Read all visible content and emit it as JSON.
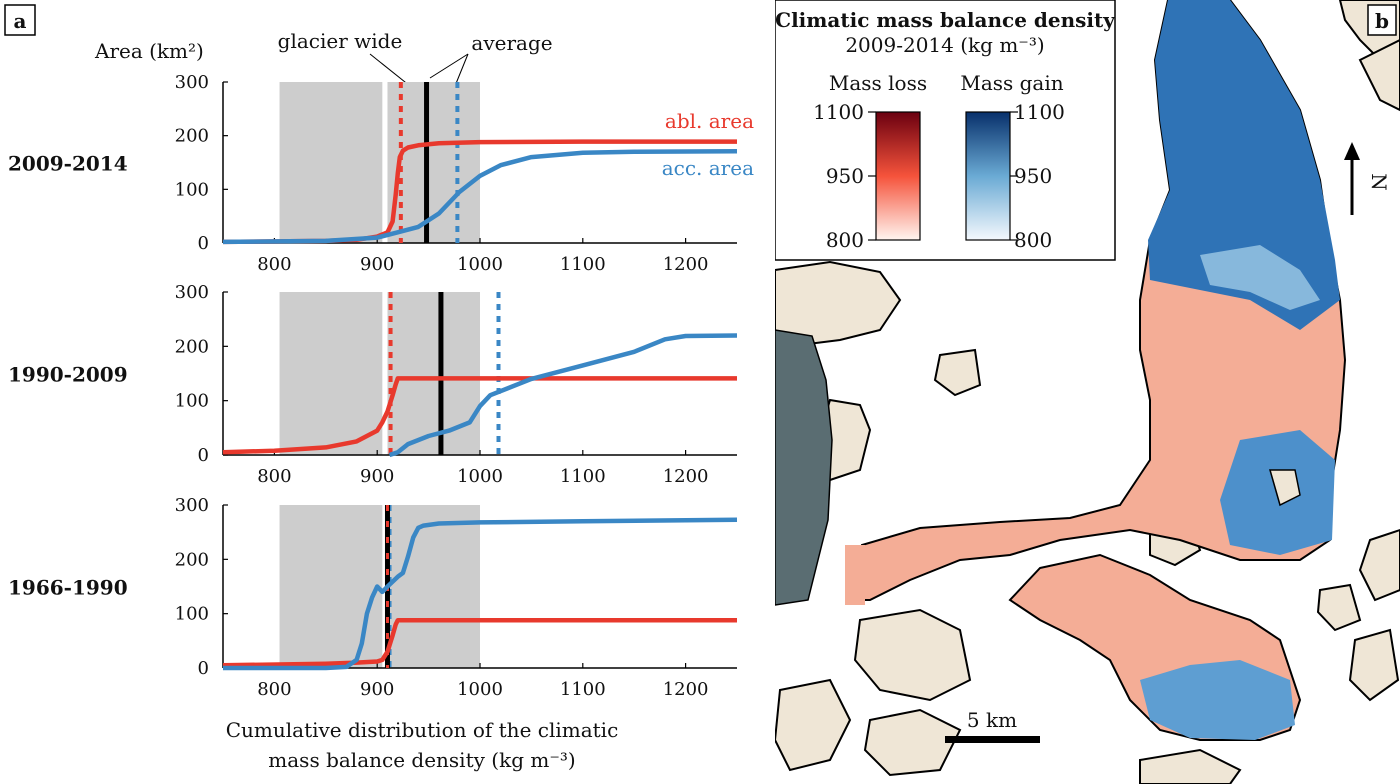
{
  "panel_a": {
    "tag": "a",
    "y_axis_title": "Area (km²)",
    "x_axis_title_line1": "Cumulative distribution of the climatic",
    "x_axis_title_line2": "mass balance density (kg m⁻³)",
    "callout_glacier_wide": "glacier wide",
    "callout_average": "average",
    "series_label_ablation": "abl. area",
    "series_label_accumulation": "acc. area"
  },
  "panel_b": {
    "tag": "b",
    "legend_title_line1": "Climatic mass balance density",
    "legend_title_line2": "2009-2014 (kg m⁻³)",
    "mass_loss_label": "Mass loss",
    "mass_gain_label": "Mass gain",
    "colorbar_ticks": [
      "1100",
      "950",
      "800"
    ],
    "scale_bar_label": "5 km",
    "north_label": "N"
  },
  "colors": {
    "ablation": "#e8392d",
    "accumulation": "#3a87c5",
    "average_line": "#000000",
    "shading": "#cdcdcd",
    "ice_loss": "#f4ad96",
    "land": "#efe6d6",
    "lake": "#5a6d72"
  },
  "chart_data": [
    {
      "type": "line",
      "period": "2009-2014",
      "xlim": [
        750,
        1250
      ],
      "ylim": [
        0,
        300
      ],
      "x_ticks": [
        800,
        900,
        1000,
        1100,
        1200
      ],
      "y_ticks": [
        0,
        100,
        200,
        300
      ],
      "shaded_ranges": [
        [
          805,
          905
        ],
        [
          910,
          1000
        ]
      ],
      "vertical_lines": {
        "ablation_avg": 923,
        "glacier_wide_avg": 948,
        "accumulation_avg": 978
      },
      "series": [
        {
          "name": "abl. area",
          "x": [
            750,
            850,
            880,
            900,
            910,
            915,
            918,
            920,
            922,
            925,
            930,
            940,
            960,
            1000,
            1100,
            1250
          ],
          "y": [
            2,
            4,
            6,
            12,
            20,
            40,
            90,
            130,
            160,
            172,
            178,
            182,
            186,
            188,
            189,
            189
          ]
        },
        {
          "name": "acc. area",
          "x": [
            750,
            850,
            900,
            920,
            940,
            960,
            980,
            1000,
            1020,
            1050,
            1100,
            1150,
            1250
          ],
          "y": [
            2,
            4,
            10,
            20,
            30,
            55,
            95,
            125,
            145,
            160,
            168,
            170,
            171
          ]
        }
      ]
    },
    {
      "type": "line",
      "period": "1990-2009",
      "xlim": [
        750,
        1250
      ],
      "ylim": [
        0,
        300
      ],
      "x_ticks": [
        800,
        900,
        1000,
        1100,
        1200
      ],
      "y_ticks": [
        0,
        100,
        200,
        300
      ],
      "shaded_ranges": [
        [
          805,
          905
        ],
        [
          910,
          1000
        ]
      ],
      "vertical_lines": {
        "ablation_avg": 913,
        "glacier_wide_avg": 962,
        "accumulation_avg": 1018
      },
      "series": [
        {
          "name": "abl. area",
          "x": [
            750,
            800,
            850,
            880,
            900,
            905,
            910,
            915,
            918,
            920,
            950,
            1250
          ],
          "y": [
            5,
            8,
            14,
            25,
            45,
            60,
            80,
            110,
            130,
            141,
            141,
            141
          ]
        },
        {
          "name": "acc. area",
          "x": [
            912,
            920,
            930,
            950,
            970,
            990,
            1000,
            1010,
            1050,
            1100,
            1150,
            1180,
            1200,
            1250
          ],
          "y": [
            0,
            5,
            20,
            35,
            45,
            60,
            90,
            110,
            140,
            165,
            190,
            213,
            219,
            220
          ]
        }
      ]
    },
    {
      "type": "line",
      "period": "1966-1990",
      "xlim": [
        750,
        1250
      ],
      "ylim": [
        0,
        300
      ],
      "x_ticks": [
        800,
        900,
        1000,
        1100,
        1200
      ],
      "y_ticks": [
        0,
        100,
        200,
        300
      ],
      "shaded_ranges": [
        [
          805,
          905
        ],
        [
          910,
          1000
        ]
      ],
      "vertical_lines": {
        "ablation_avg": 910,
        "glacier_wide_avg": 910,
        "accumulation_avg": 912
      },
      "series": [
        {
          "name": "abl. area",
          "x": [
            750,
            850,
            880,
            900,
            905,
            910,
            915,
            918,
            920,
            1250
          ],
          "y": [
            5,
            8,
            10,
            12,
            15,
            30,
            60,
            80,
            88,
            88
          ]
        },
        {
          "name": "acc. area",
          "x": [
            750,
            850,
            870,
            880,
            885,
            890,
            895,
            900,
            905,
            910,
            920,
            925,
            930,
            935,
            940,
            945,
            960,
            1000,
            1100,
            1250
          ],
          "y": [
            0,
            0,
            2,
            15,
            45,
            100,
            130,
            150,
            140,
            150,
            168,
            175,
            205,
            240,
            258,
            262,
            266,
            268,
            270,
            273
          ]
        }
      ]
    }
  ]
}
